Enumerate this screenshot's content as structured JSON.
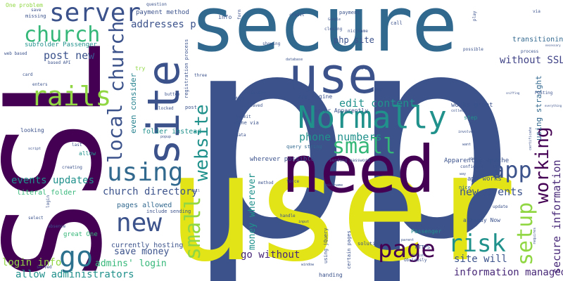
{
  "palette": {
    "dark_purple": "#440154",
    "indigo": "#3b528b",
    "blue": "#31688e",
    "steel": "#2c728e",
    "teal": "#21918c",
    "green": "#35b779",
    "lime": "#90d743",
    "yellow": "#e2e418",
    "purple": "#482878",
    "blue_violet": "#414487",
    "muted_blue": "#26828e"
  },
  "words": [
    {
      "text": "pp",
      "color": "indigo"
    },
    {
      "text": "user",
      "color": "yellow"
    },
    {
      "text": "SSL",
      "color": "dark_purple"
    },
    {
      "text": "secure",
      "color": "blue"
    },
    {
      "text": "need",
      "color": "dark_purple"
    },
    {
      "text": "site",
      "color": "indigo"
    },
    {
      "text": "use",
      "color": "indigo"
    },
    {
      "text": "Normally",
      "color": "teal"
    },
    {
      "text": "server",
      "color": "indigo"
    },
    {
      "text": "rails",
      "color": "lime"
    },
    {
      "text": "church",
      "color": "green"
    },
    {
      "text": "church",
      "color": "indigo"
    },
    {
      "text": "local",
      "color": "indigo"
    },
    {
      "text": "using",
      "color": "blue"
    },
    {
      "text": "new",
      "color": "indigo"
    },
    {
      "text": "go",
      "color": "steel"
    },
    {
      "text": "small",
      "color": "green"
    },
    {
      "text": "small",
      "color": "lime"
    },
    {
      "text": "website",
      "color": "teal"
    },
    {
      "text": "page",
      "color": "dark_purple"
    },
    {
      "text": "app",
      "color": "indigo"
    },
    {
      "text": "risk",
      "color": "teal"
    },
    {
      "text": "setup",
      "color": "lime"
    },
    {
      "text": "working",
      "color": "dark_purple"
    },
    {
      "text": "secure information",
      "color": "purple"
    },
    {
      "text": "edit content",
      "color": "teal"
    },
    {
      "text": "new events",
      "color": "indigo"
    },
    {
      "text": "post new",
      "color": "indigo"
    },
    {
      "text": "addresses p",
      "color": "indigo"
    },
    {
      "text": "php site",
      "color": "indigo"
    },
    {
      "text": "phone numbers",
      "color": "teal"
    },
    {
      "text": "without SSL",
      "color": "blue_violet"
    },
    {
      "text": "events updates",
      "color": "teal"
    },
    {
      "text": "church directory",
      "color": "indigo"
    },
    {
      "text": "allow administrators",
      "color": "teal"
    },
    {
      "text": "information managed",
      "color": "purple"
    },
    {
      "text": "money wherever",
      "color": "teal"
    },
    {
      "text": "go without",
      "color": "purple"
    },
    {
      "text": "site will",
      "color": "indigo"
    },
    {
      "text": "save money",
      "color": "indigo"
    },
    {
      "text": "login info",
      "color": "lime"
    },
    {
      "text": "admins' login",
      "color": "green"
    },
    {
      "text": "currently hosting",
      "color": "indigo"
    },
    {
      "text": "literal folder",
      "color": "green"
    },
    {
      "text": "using straight",
      "color": "blue"
    },
    {
      "text": "transitioning",
      "color": "blue"
    },
    {
      "text": "pages allowed",
      "color": "blue"
    },
    {
      "text": "payment method",
      "color": "indigo"
    },
    {
      "text": "even consider",
      "color": "muted_blue"
    },
    {
      "text": "folder instead",
      "color": "teal"
    },
    {
      "text": "One problem",
      "color": "lime"
    },
    {
      "text": "subfolder Passenger",
      "color": "teal"
    },
    {
      "text": "works great",
      "color": "indigo"
    },
    {
      "text": "error Apparently",
      "color": "indigo"
    },
    {
      "text": "App Engine",
      "color": "indigo"
    },
    {
      "text": "Apparently apache",
      "color": "indigo"
    },
    {
      "text": "app works",
      "color": "indigo"
    },
    {
      "text": "wherever possible",
      "color": "indigo"
    },
    {
      "text": "already Now",
      "color": "indigo"
    },
    {
      "text": "query string",
      "color": "blue"
    },
    {
      "text": "done via",
      "color": "indigo"
    },
    {
      "text": "info",
      "color": "indigo"
    },
    {
      "text": "great One",
      "color": "green"
    },
    {
      "text": "allow",
      "color": "teal"
    },
    {
      "text": "looking",
      "color": "indigo"
    },
    {
      "text": "certain pages",
      "color": "indigo"
    },
    {
      "text": "using jQuery",
      "color": "indigo"
    },
    {
      "text": "creating",
      "color": "indigo"
    },
    {
      "text": "last",
      "color": "indigo"
    },
    {
      "text": "step",
      "color": "teal"
    },
    {
      "text": "nice",
      "color": "blue"
    },
    {
      "text": "handing",
      "color": "indigo"
    },
    {
      "text": "Passenger",
      "color": "teal"
    },
    {
      "text": "solution",
      "color": "indigo"
    },
    {
      "text": "HTTPS",
      "color": "indigo"
    },
    {
      "text": "try",
      "color": "lime"
    },
    {
      "text": "locked",
      "color": "indigo"
    },
    {
      "text": "post",
      "color": "indigo"
    },
    {
      "text": "button",
      "color": "indigo"
    },
    {
      "text": "GMaps",
      "color": "indigo"
    },
    {
      "text": "saved",
      "color": "indigo"
    },
    {
      "text": "submit",
      "color": "indigo"
    },
    {
      "text": "question",
      "color": "indigo"
    },
    {
      "text": "popup",
      "color": "indigo"
    },
    {
      "text": "missing",
      "color": "indigo"
    },
    {
      "text": "save",
      "color": "indigo"
    },
    {
      "text": "web based",
      "color": "indigo"
    },
    {
      "text": "based API",
      "color": "indigo"
    },
    {
      "text": "enters",
      "color": "indigo"
    },
    {
      "text": "card",
      "color": "indigo"
    },
    {
      "text": "method",
      "color": "indigo"
    },
    {
      "text": "force",
      "color": "indigo"
    },
    {
      "text": "handle",
      "color": "indigo"
    },
    {
      "text": "input",
      "color": "indigo"
    },
    {
      "text": "Obviously",
      "color": "indigo"
    },
    {
      "text": "finish",
      "color": "indigo"
    },
    {
      "text": "parent",
      "color": "indigo"
    },
    {
      "text": "click",
      "color": "indigo"
    },
    {
      "text": "update",
      "color": "indigo"
    },
    {
      "text": "POSting",
      "color": "indigo"
    },
    {
      "text": "collect",
      "color": "indigo"
    },
    {
      "text": "involves",
      "color": "indigo"
    },
    {
      "text": "configure",
      "color": "indigo"
    },
    {
      "text": "process",
      "color": "indigo"
    },
    {
      "text": "possible",
      "color": "indigo"
    },
    {
      "text": "closing",
      "color": "indigo"
    },
    {
      "text": "nicjname",
      "color": "indigo"
    },
    {
      "text": "Google",
      "color": "indigo"
    },
    {
      "text": "payment",
      "color": "indigo"
    },
    {
      "text": "credit",
      "color": "indigo"
    },
    {
      "text": "call",
      "color": "indigo"
    },
    {
      "text": "play",
      "color": "indigo"
    },
    {
      "text": "form",
      "color": "indigo"
    },
    {
      "text": "showing",
      "color": "indigo"
    },
    {
      "text": "database",
      "color": "indigo"
    },
    {
      "text": "three",
      "color": "indigo"
    },
    {
      "text": "assume",
      "color": "indigo"
    },
    {
      "text": "data",
      "color": "indigo"
    },
    {
      "text": "sending password",
      "color": "indigo"
    },
    {
      "text": "nickname",
      "color": "indigo"
    },
    {
      "text": "absence",
      "color": "indigo"
    },
    {
      "text": "select",
      "color": "indigo"
    },
    {
      "text": "login",
      "color": "indigo"
    },
    {
      "text": "include sending",
      "color": "indigo"
    },
    {
      "text": "registration process",
      "color": "indigo"
    },
    {
      "text": "served",
      "color": "indigo"
    },
    {
      "text": "window",
      "color": "indigo"
    },
    {
      "text": "requires",
      "color": "indigo"
    },
    {
      "text": "way",
      "color": "indigo"
    },
    {
      "text": "ajax",
      "color": "indigo"
    },
    {
      "text": "certificate",
      "color": "indigo"
    },
    {
      "text": "API",
      "color": "indigo"
    },
    {
      "text": "will",
      "color": "indigo"
    },
    {
      "text": "script",
      "color": "indigo"
    },
    {
      "text": "everything",
      "color": "indigo"
    },
    {
      "text": "necessary",
      "color": "indigo"
    },
    {
      "text": "want",
      "color": "indigo"
    },
    {
      "text": "via",
      "color": "indigo"
    },
    {
      "text": "map",
      "color": "indigo"
    },
    {
      "text": "sniffing",
      "color": "indigo"
    }
  ]
}
